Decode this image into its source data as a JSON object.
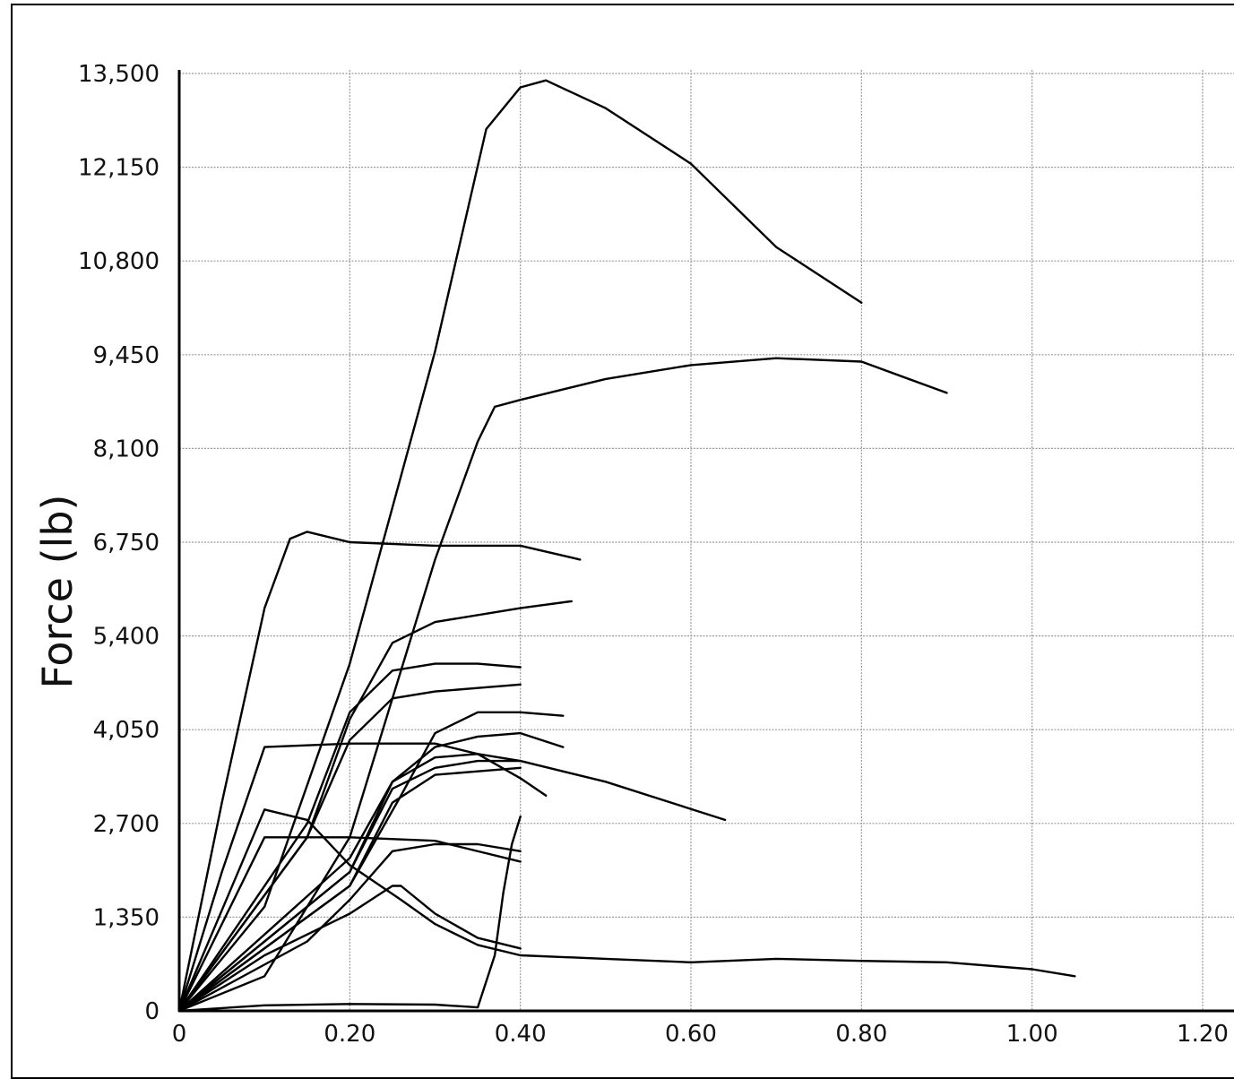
{
  "chart_data": {
    "type": "line",
    "title": "",
    "xlabel": "",
    "ylabel": "Force (lb)",
    "xlim": [
      0,
      1.2
    ],
    "ylim": [
      0,
      13500
    ],
    "xticks": [
      0,
      0.2,
      0.4,
      0.6,
      0.8,
      1.0,
      1.2
    ],
    "xtick_labels": [
      "0",
      "0.20",
      "0.40",
      "0.60",
      "0.80",
      "1.00",
      "1.20"
    ],
    "yticks": [
      0,
      1350,
      2700,
      4050,
      5400,
      6750,
      8100,
      9450,
      10800,
      12150,
      13500
    ],
    "ytick_labels": [
      "0",
      "1,350",
      "2,700",
      "4,050",
      "5,400",
      "6,750",
      "8,100",
      "9,450",
      "10,800",
      "12,150",
      "13,500"
    ],
    "grid": true,
    "line_color": "#000000",
    "series": [
      {
        "x": [
          0,
          0.1,
          0.2,
          0.3,
          0.36,
          0.4,
          0.43,
          0.5,
          0.6,
          0.7,
          0.8
        ],
        "y": [
          0,
          1500,
          5000,
          9500,
          12700,
          13300,
          13400,
          13000,
          12200,
          11000,
          10200
        ]
      },
      {
        "x": [
          0,
          0.1,
          0.2,
          0.3,
          0.35,
          0.37,
          0.4,
          0.5,
          0.6,
          0.7,
          0.8,
          0.9
        ],
        "y": [
          0,
          500,
          2500,
          6500,
          8200,
          8700,
          8800,
          9100,
          9300,
          9400,
          9350,
          8900
        ]
      },
      {
        "x": [
          0,
          0.05,
          0.1,
          0.13,
          0.15,
          0.2,
          0.3,
          0.4,
          0.47
        ],
        "y": [
          0,
          3000,
          5800,
          6800,
          6900,
          6750,
          6700,
          6700,
          6500
        ]
      },
      {
        "x": [
          0,
          0.15,
          0.2,
          0.25,
          0.3,
          0.4,
          0.46
        ],
        "y": [
          0,
          2500,
          4200,
          5300,
          5600,
          5800,
          5900
        ]
      },
      {
        "x": [
          0,
          0.15,
          0.2,
          0.25,
          0.3,
          0.35,
          0.4
        ],
        "y": [
          0,
          2700,
          4300,
          4900,
          5000,
          5000,
          4950
        ]
      },
      {
        "x": [
          0,
          0.15,
          0.2,
          0.25,
          0.3,
          0.35,
          0.4
        ],
        "y": [
          0,
          2500,
          3900,
          4500,
          4600,
          4650,
          4700
        ]
      },
      {
        "x": [
          0,
          0.2,
          0.26,
          0.3,
          0.35,
          0.4,
          0.45
        ],
        "y": [
          0,
          1800,
          3100,
          4000,
          4300,
          4300,
          4250
        ]
      },
      {
        "x": [
          0,
          0.2,
          0.25,
          0.3,
          0.35,
          0.4,
          0.45
        ],
        "y": [
          0,
          2000,
          3300,
          3800,
          3950,
          4000,
          3800
        ]
      },
      {
        "x": [
          0,
          0.05,
          0.1,
          0.2,
          0.3,
          0.35,
          0.4,
          0.43
        ],
        "y": [
          0,
          2000,
          3800,
          3850,
          3850,
          3700,
          3350,
          3100
        ]
      },
      {
        "x": [
          0,
          0.2,
          0.25,
          0.3,
          0.35,
          0.4,
          0.5,
          0.64
        ],
        "y": [
          0,
          2200,
          3300,
          3650,
          3700,
          3600,
          3300,
          2750
        ]
      },
      {
        "x": [
          0,
          0.2,
          0.25,
          0.3,
          0.35,
          0.4
        ],
        "y": [
          0,
          2000,
          3200,
          3500,
          3600,
          3600
        ]
      },
      {
        "x": [
          0,
          0.2,
          0.25,
          0.3,
          0.35,
          0.4
        ],
        "y": [
          0,
          1800,
          3000,
          3400,
          3450,
          3500
        ]
      },
      {
        "x": [
          0,
          0.1,
          0.2,
          0.3,
          0.4
        ],
        "y": [
          0,
          2500,
          2500,
          2450,
          2150
        ]
      },
      {
        "x": [
          0,
          0.1,
          0.15,
          0.2,
          0.26,
          0.3,
          0.35,
          0.4,
          0.5,
          0.6,
          0.7,
          0.8,
          0.9,
          1.0,
          1.05
        ],
        "y": [
          0,
          2900,
          2750,
          2100,
          1600,
          1250,
          950,
          800,
          750,
          700,
          750,
          720,
          700,
          600,
          500
        ]
      },
      {
        "x": [
          0,
          0.15,
          0.2,
          0.25,
          0.3,
          0.35,
          0.4
        ],
        "y": [
          0,
          1000,
          1600,
          2300,
          2400,
          2400,
          2300
        ]
      },
      {
        "x": [
          0,
          0.1,
          0.2,
          0.25,
          0.26,
          0.3,
          0.35,
          0.4
        ],
        "y": [
          0,
          800,
          1400,
          1800,
          1800,
          1400,
          1050,
          900
        ]
      },
      {
        "x": [
          0,
          0.1,
          0.2,
          0.3,
          0.35,
          0.37,
          0.38,
          0.39,
          0.4
        ],
        "y": [
          0,
          80,
          100,
          90,
          50,
          800,
          1700,
          2400,
          2800
        ]
      }
    ]
  }
}
